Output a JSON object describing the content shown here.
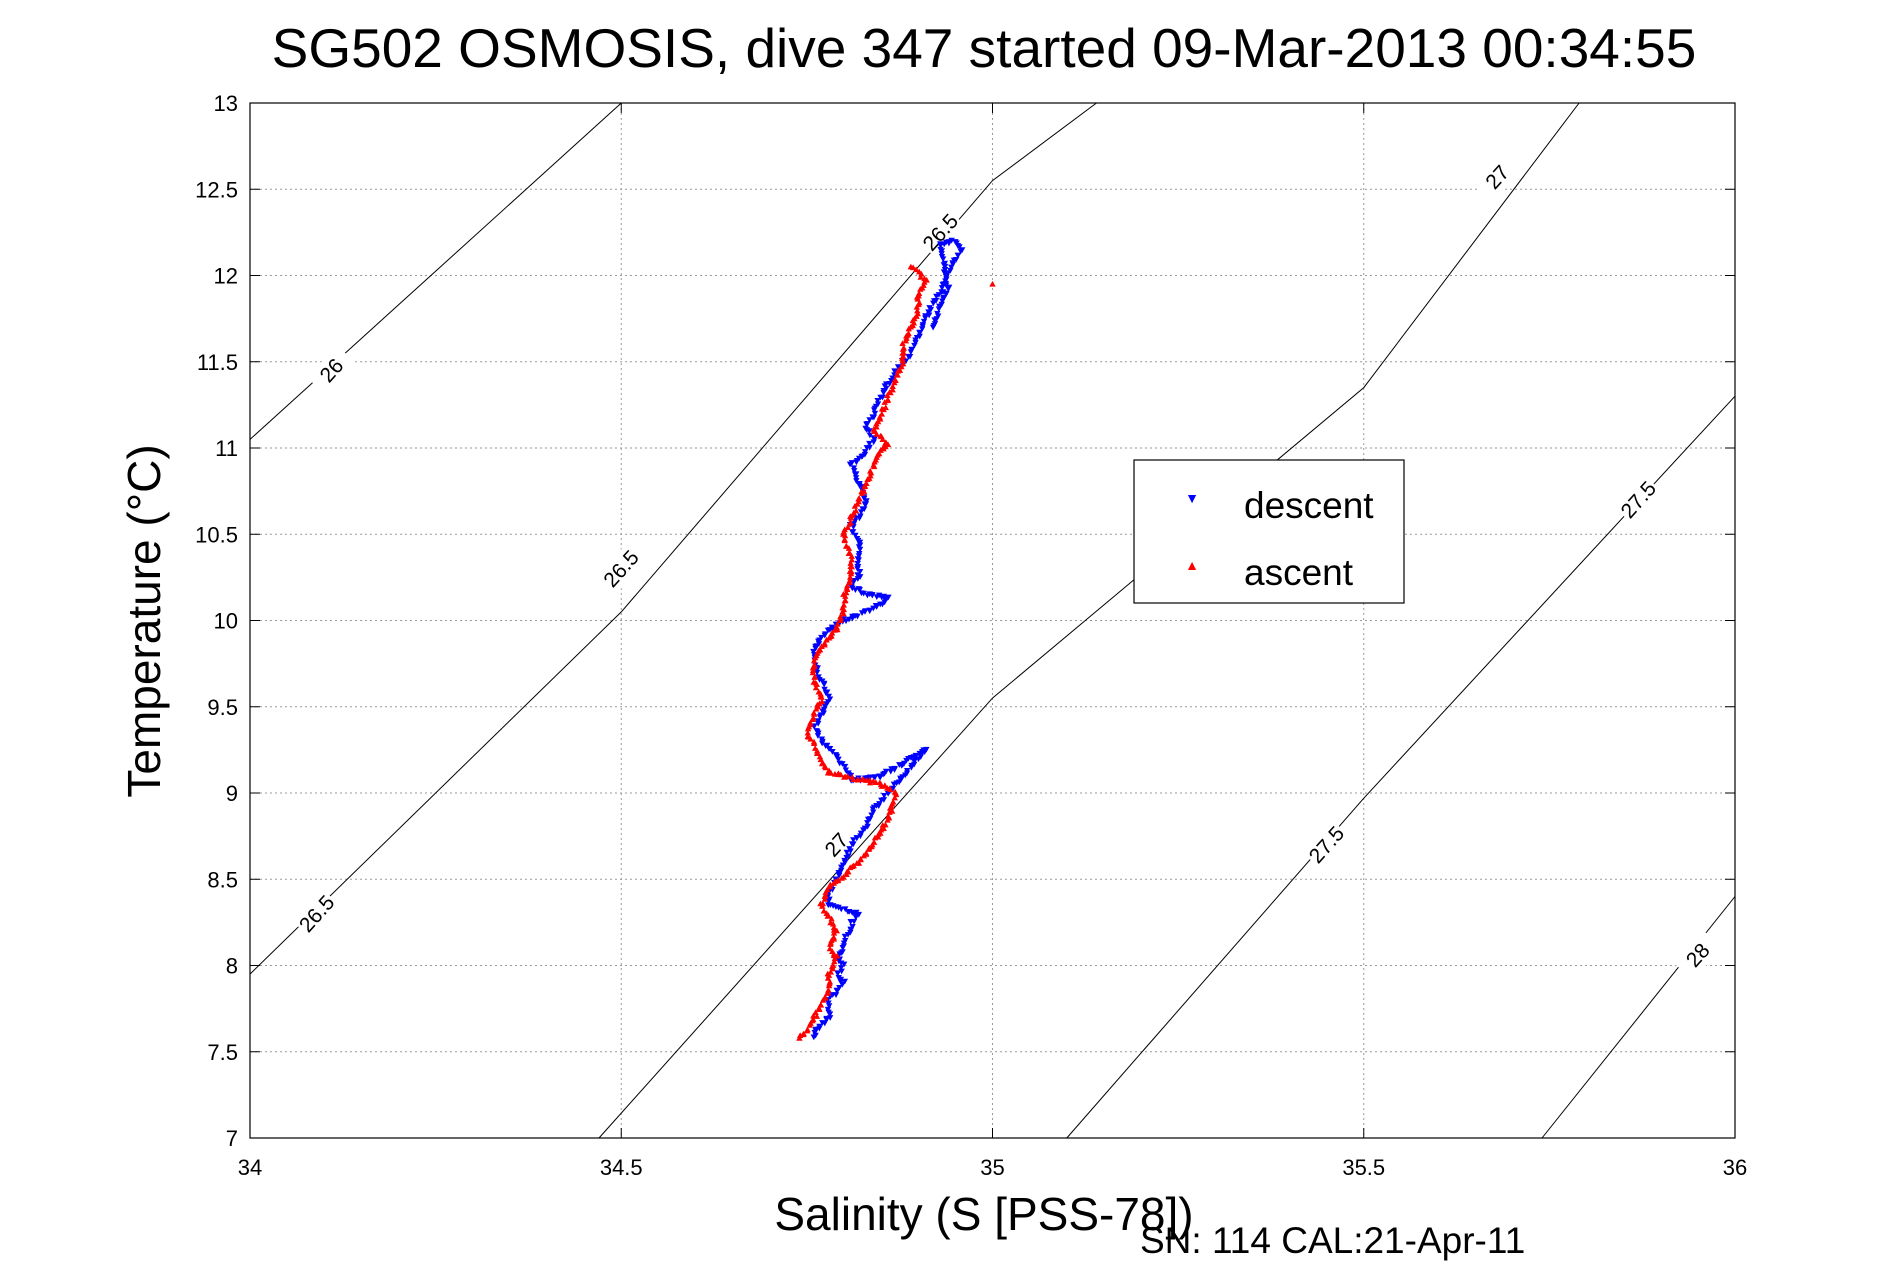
{
  "chart_data": {
    "type": "scatter",
    "title": "SG502 OSMOSIS, dive 347 started 09-Mar-2013 00:34:55",
    "xlabel": "Salinity (S [PSS-78])",
    "ylabel": "Temperature (°C)",
    "xlim": [
      34,
      36
    ],
    "ylim": [
      7,
      13
    ],
    "xticks": [
      "34",
      "34.5",
      "35",
      "35.5",
      "36"
    ],
    "yticks": [
      "7",
      "7.5",
      "8",
      "8.5",
      "9",
      "9.5",
      "10",
      "10.5",
      "11",
      "11.5",
      "12",
      "12.5",
      "13"
    ],
    "grid": true,
    "legend_position": "right",
    "footer": "SN: 114  CAL:21-Apr-11",
    "contours": [
      {
        "level": 26,
        "label": "26",
        "points": [
          [
            34.0,
            11.05
          ],
          [
            34.5,
            13.0
          ]
        ],
        "label_at": [
          34.11,
          11.45
        ]
      },
      {
        "level": 26.5,
        "label": "26.5",
        "points": [
          [
            34.0,
            7.95
          ],
          [
            34.5,
            10.05
          ],
          [
            35.0,
            12.55
          ],
          [
            35.14,
            13.0
          ]
        ],
        "label_at_list": [
          [
            34.09,
            8.3
          ],
          [
            34.5,
            10.3
          ],
          [
            34.93,
            12.25
          ]
        ]
      },
      {
        "level": 27,
        "label": "27",
        "points": [
          [
            34.47,
            7.0
          ],
          [
            35.0,
            9.55
          ],
          [
            35.5,
            11.35
          ],
          [
            35.79,
            13.0
          ]
        ],
        "label_at_list": [
          [
            34.79,
            8.7
          ],
          [
            35.68,
            12.57
          ]
        ]
      },
      {
        "level": 27.5,
        "label": "27.5",
        "points": [
          [
            35.1,
            7.0
          ],
          [
            35.5,
            8.97
          ],
          [
            36.0,
            11.3
          ]
        ],
        "label_at_list": [
          [
            35.45,
            8.7
          ],
          [
            35.87,
            10.7
          ]
        ]
      },
      {
        "level": 28,
        "label": "28",
        "points": [
          [
            35.74,
            7.0
          ],
          [
            36.0,
            8.4
          ]
        ],
        "label_at": [
          35.95,
          8.06
        ]
      }
    ],
    "series": [
      {
        "name": "descent",
        "color": "#0000ff",
        "marker": "triangle-down",
        "points": [
          [
            34.76,
            7.58
          ],
          [
            34.76,
            7.62
          ],
          [
            34.77,
            7.66
          ],
          [
            34.78,
            7.7
          ],
          [
            34.78,
            7.75
          ],
          [
            34.78,
            7.8
          ],
          [
            34.79,
            7.85
          ],
          [
            34.8,
            7.9
          ],
          [
            34.79,
            7.95
          ],
          [
            34.8,
            8.0
          ],
          [
            34.79,
            8.05
          ],
          [
            34.8,
            8.1
          ],
          [
            34.8,
            8.15
          ],
          [
            34.81,
            8.2
          ],
          [
            34.81,
            8.25
          ],
          [
            34.82,
            8.3
          ],
          [
            34.8,
            8.32
          ],
          [
            34.78,
            8.35
          ],
          [
            34.78,
            8.42
          ],
          [
            34.79,
            8.5
          ],
          [
            34.8,
            8.6
          ],
          [
            34.81,
            8.7
          ],
          [
            34.83,
            8.8
          ],
          [
            34.84,
            8.9
          ],
          [
            34.86,
            9.0
          ],
          [
            34.88,
            9.1
          ],
          [
            34.9,
            9.2
          ],
          [
            34.91,
            9.25
          ],
          [
            34.89,
            9.2
          ],
          [
            34.87,
            9.15
          ],
          [
            34.85,
            9.1
          ],
          [
            34.83,
            9.08
          ],
          [
            34.81,
            9.08
          ],
          [
            34.8,
            9.15
          ],
          [
            34.79,
            9.22
          ],
          [
            34.77,
            9.3
          ],
          [
            34.76,
            9.38
          ],
          [
            34.77,
            9.45
          ],
          [
            34.78,
            9.55
          ],
          [
            34.77,
            9.65
          ],
          [
            34.76,
            9.75
          ],
          [
            34.76,
            9.85
          ],
          [
            34.78,
            9.95
          ],
          [
            34.8,
            10.0
          ],
          [
            34.83,
            10.05
          ],
          [
            34.85,
            10.1
          ],
          [
            34.86,
            10.13
          ],
          [
            34.83,
            10.15
          ],
          [
            34.81,
            10.2
          ],
          [
            34.82,
            10.25
          ],
          [
            34.82,
            10.35
          ],
          [
            34.82,
            10.45
          ],
          [
            34.81,
            10.55
          ],
          [
            34.82,
            10.6
          ],
          [
            34.83,
            10.68
          ],
          [
            34.82,
            10.8
          ],
          [
            34.81,
            10.9
          ],
          [
            34.83,
            10.98
          ],
          [
            34.84,
            11.05
          ],
          [
            34.83,
            11.12
          ],
          [
            34.84,
            11.2
          ],
          [
            34.85,
            11.3
          ],
          [
            34.86,
            11.38
          ],
          [
            34.87,
            11.45
          ],
          [
            34.88,
            11.5
          ],
          [
            34.89,
            11.55
          ],
          [
            34.9,
            11.65
          ],
          [
            34.91,
            11.75
          ],
          [
            34.92,
            11.85
          ],
          [
            34.93,
            11.9
          ],
          [
            34.94,
            12.0
          ],
          [
            34.95,
            12.1
          ],
          [
            34.96,
            12.15
          ],
          [
            34.95,
            12.2
          ],
          [
            34.93,
            12.18
          ],
          [
            34.94,
            11.93
          ],
          [
            34.92,
            11.7
          ]
        ]
      },
      {
        "name": "ascent",
        "color": "#ff0000",
        "marker": "triangle-up",
        "points": [
          [
            34.74,
            7.58
          ],
          [
            34.75,
            7.62
          ],
          [
            34.76,
            7.7
          ],
          [
            34.77,
            7.78
          ],
          [
            34.78,
            7.85
          ],
          [
            34.78,
            7.95
          ],
          [
            34.79,
            8.05
          ],
          [
            34.78,
            8.1
          ],
          [
            34.79,
            8.2
          ],
          [
            34.78,
            8.28
          ],
          [
            34.77,
            8.35
          ],
          [
            34.78,
            8.45
          ],
          [
            34.8,
            8.52
          ],
          [
            34.82,
            8.6
          ],
          [
            34.84,
            8.72
          ],
          [
            34.86,
            8.85
          ],
          [
            34.87,
            9.0
          ],
          [
            34.85,
            9.05
          ],
          [
            34.82,
            9.08
          ],
          [
            34.8,
            9.1
          ],
          [
            34.78,
            9.12
          ],
          [
            34.77,
            9.18
          ],
          [
            34.76,
            9.28
          ],
          [
            34.75,
            9.35
          ],
          [
            34.76,
            9.45
          ],
          [
            34.77,
            9.55
          ],
          [
            34.76,
            9.65
          ],
          [
            34.76,
            9.75
          ],
          [
            34.77,
            9.85
          ],
          [
            34.79,
            9.95
          ],
          [
            34.8,
            10.05
          ],
          [
            34.8,
            10.15
          ],
          [
            34.81,
            10.25
          ],
          [
            34.81,
            10.35
          ],
          [
            34.8,
            10.5
          ],
          [
            34.81,
            10.6
          ],
          [
            34.82,
            10.7
          ],
          [
            34.83,
            10.8
          ],
          [
            34.84,
            10.9
          ],
          [
            34.85,
            10.98
          ],
          [
            34.86,
            11.02
          ],
          [
            34.84,
            11.1
          ],
          [
            34.85,
            11.2
          ],
          [
            34.86,
            11.3
          ],
          [
            34.87,
            11.4
          ],
          [
            34.88,
            11.5
          ],
          [
            34.88,
            11.6
          ],
          [
            34.89,
            11.7
          ],
          [
            34.9,
            11.8
          ],
          [
            34.9,
            11.9
          ],
          [
            34.91,
            11.97
          ],
          [
            34.9,
            12.02
          ],
          [
            34.89,
            12.05
          ],
          [
            35.0,
            11.95
          ]
        ]
      }
    ]
  }
}
